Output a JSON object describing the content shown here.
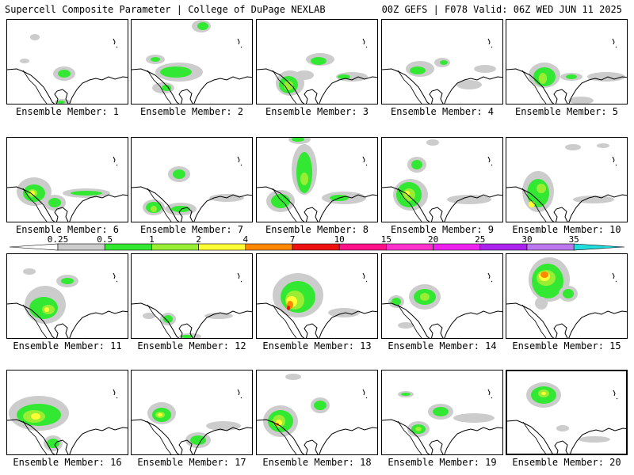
{
  "header": {
    "title_left": "Supercell Composite Parameter | College of DuPage NEXLAB",
    "title_right": "00Z GEFS | F078 Valid: 06Z WED JUN 11 2025"
  },
  "colorbar": {
    "labels": [
      "0.25",
      "0.5",
      "1",
      "2",
      "4",
      "7",
      "10",
      "15",
      "20",
      "25",
      "30",
      "35"
    ],
    "colors": [
      "#cccccc",
      "#33e833",
      "#99ee33",
      "#ffff33",
      "#ff8800",
      "#ee1111",
      "#ff1188",
      "#ff33cc",
      "#ee22ee",
      "#aa22ee",
      "#bb77ee",
      "#22dddd"
    ]
  },
  "palette": {
    "grey": "#cccccc",
    "green": "#33e833",
    "lime": "#99ee33",
    "yellow": "#ffff33",
    "orange": "#ff8800",
    "red": "#ee1111"
  },
  "panels": [
    {
      "label": "Ensemble Member: 1",
      "selected": false
    },
    {
      "label": "Ensemble Member: 2",
      "selected": false
    },
    {
      "label": "Ensemble Member: 3",
      "selected": false
    },
    {
      "label": "Ensemble Member: 4",
      "selected": false
    },
    {
      "label": "Ensemble Member: 5",
      "selected": false
    },
    {
      "label": "Ensemble Member: 6",
      "selected": false
    },
    {
      "label": "Ensemble Member: 7",
      "selected": false
    },
    {
      "label": "Ensemble Member: 8",
      "selected": false
    },
    {
      "label": "Ensemble Member: 9",
      "selected": false
    },
    {
      "label": "Ensemble Member: 10",
      "selected": false
    },
    {
      "label": "Ensemble Member: 11",
      "selected": false
    },
    {
      "label": "Ensemble Member: 12",
      "selected": false
    },
    {
      "label": "Ensemble Member: 13",
      "selected": false
    },
    {
      "label": "Ensemble Member: 14",
      "selected": false
    },
    {
      "label": "Ensemble Member: 15",
      "selected": false
    },
    {
      "label": "Ensemble Member: 16",
      "selected": false
    },
    {
      "label": "Ensemble Member: 17",
      "selected": false
    },
    {
      "label": "Ensemble Member: 18",
      "selected": false
    },
    {
      "label": "Ensemble Member: 19",
      "selected": false
    },
    {
      "label": "Ensemble Member: 20",
      "selected": true
    }
  ]
}
